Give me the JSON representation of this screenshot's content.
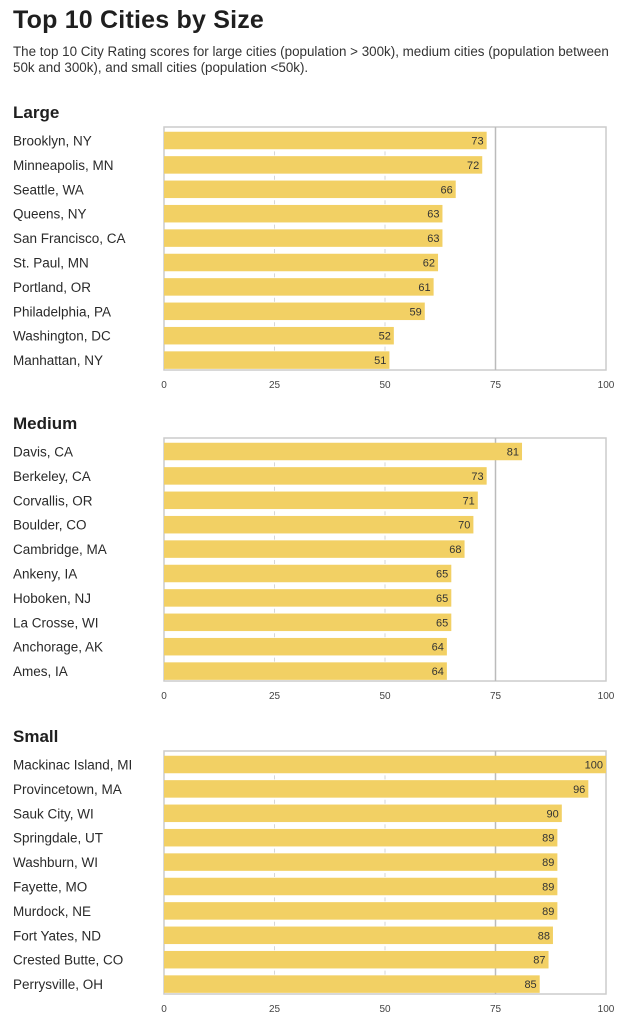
{
  "page": {
    "title": "Top 10 Cities by Size",
    "subtitle": "The top 10 City Rating scores for large cities (population > 300k), medium cities (population between 50k and 300k), and small cities (population <50k)."
  },
  "colors": {
    "bar": "#f2d064",
    "frame": "#cccccc",
    "ref_line": "#bbbbbb"
  },
  "chart_data": [
    {
      "type": "bar",
      "orientation": "horizontal",
      "title": "Large",
      "categories": [
        "Brooklyn, NY",
        "Minneapolis, MN",
        "Seattle, WA",
        "Queens, NY",
        "San Francisco, CA",
        "St. Paul, MN",
        "Portland, OR",
        "Philadelphia, PA",
        "Washington, DC",
        "Manhattan, NY"
      ],
      "values": [
        73,
        72,
        66,
        63,
        63,
        62,
        61,
        59,
        52,
        51
      ],
      "xlim": [
        0,
        100
      ],
      "xticks": [
        0,
        25,
        50,
        75,
        100
      ],
      "reference_line": 75,
      "grid": false
    },
    {
      "type": "bar",
      "orientation": "horizontal",
      "title": "Medium",
      "categories": [
        "Davis, CA",
        "Berkeley, CA",
        "Corvallis, OR",
        "Boulder, CO",
        "Cambridge, MA",
        "Ankeny, IA",
        "Hoboken, NJ",
        "La Crosse, WI",
        "Anchorage, AK",
        "Ames, IA"
      ],
      "values": [
        81,
        73,
        71,
        70,
        68,
        65,
        65,
        65,
        64,
        64
      ],
      "xlim": [
        0,
        100
      ],
      "xticks": [
        0,
        25,
        50,
        75,
        100
      ],
      "reference_line": 75,
      "grid": false
    },
    {
      "type": "bar",
      "orientation": "horizontal",
      "title": "Small",
      "categories": [
        "Mackinac Island, MI",
        "Provincetown, MA",
        "Sauk City, WI",
        "Springdale, UT",
        "Washburn, WI",
        "Fayette, MO",
        "Murdock, NE",
        "Fort Yates, ND",
        "Crested Butte, CO",
        "Perrysville, OH"
      ],
      "values": [
        100,
        96,
        90,
        89,
        89,
        89,
        89,
        88,
        87,
        85
      ],
      "xlim": [
        0,
        100
      ],
      "xticks": [
        0,
        25,
        50,
        75,
        100
      ],
      "reference_line": 75,
      "grid": false
    }
  ]
}
